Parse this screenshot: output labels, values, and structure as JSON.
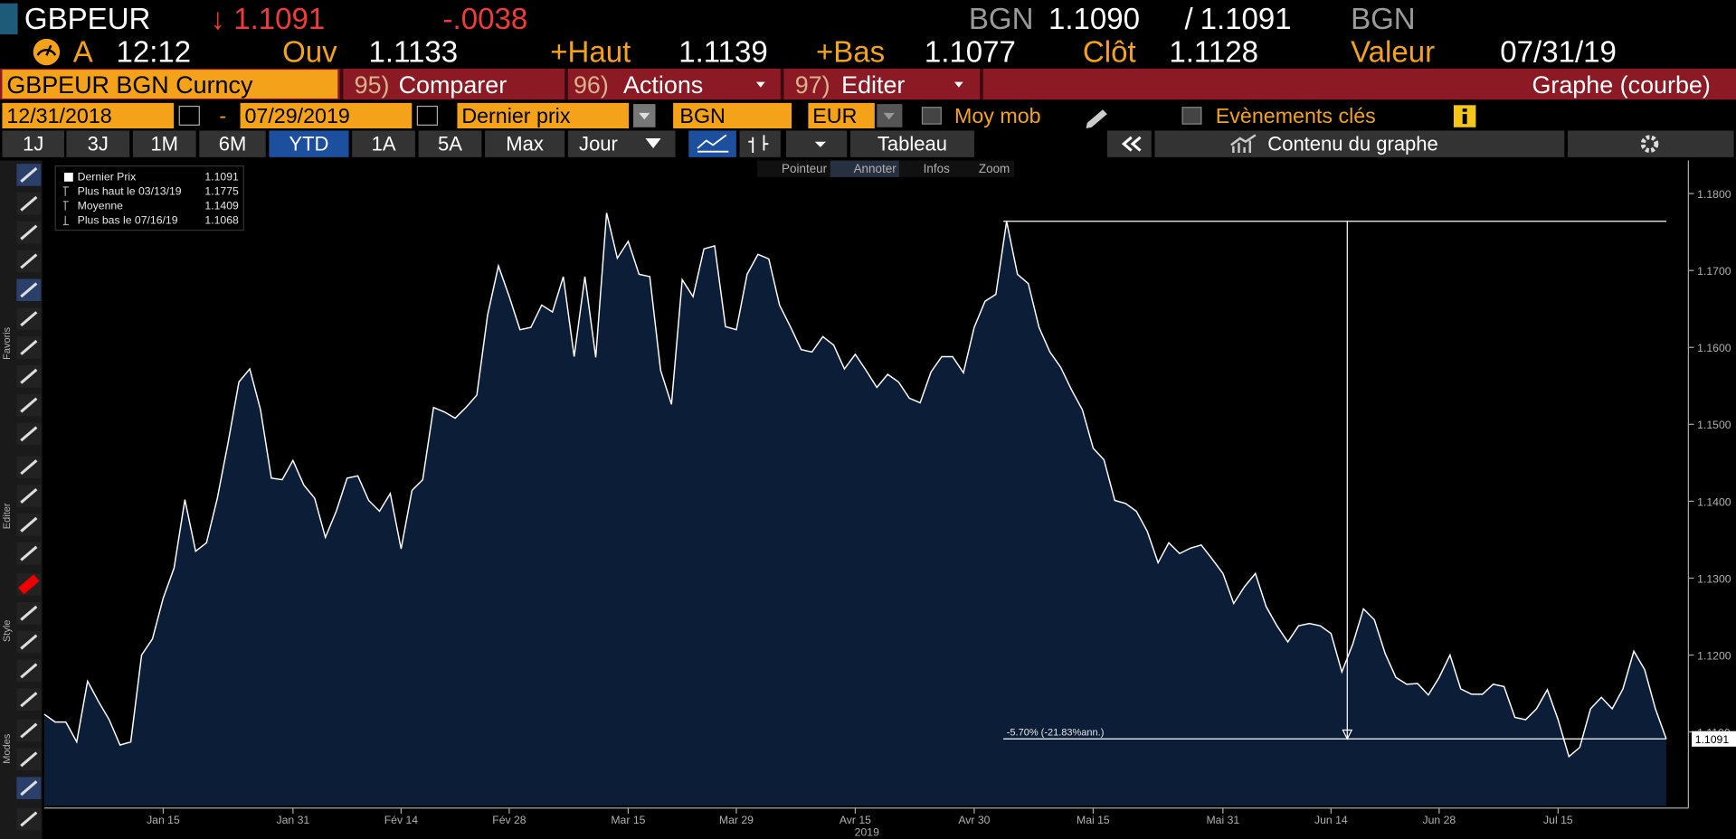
{
  "header": {
    "row1": [
      "GBPEUR",
      "↓ 1.1091",
      "-.0038",
      "BGN",
      "1.1090",
      "/",
      "1.1091",
      "BGN"
    ],
    "row2": [
      "A",
      "12:12",
      "Ouv",
      "1.1133",
      "+Haut",
      "1.1139",
      "+Bas",
      "1.1077",
      "Clôt",
      "1.1128",
      "Valeur",
      "07/31/19"
    ]
  },
  "menu": {
    "security": "GBPEUR BGN Curncy",
    "items": [
      {
        "number": "95)",
        "label": "Comparer"
      },
      {
        "number": "96)",
        "label": "Actions"
      },
      {
        "number": "97)",
        "label": "Editer"
      }
    ],
    "view": "Graphe (courbe)"
  },
  "settings": {
    "start": "12/31/2018",
    "dash": "-",
    "end": "07/29/2019",
    "field": "Dernier prix",
    "source": "BGN",
    "currency": "EUR",
    "moving_average": "Moy mob",
    "key_events": "Evènements clés"
  },
  "toolbar": {
    "periods": [
      "1J",
      "3J",
      "1M",
      "6M",
      "YTD",
      "1A",
      "5A",
      "Max"
    ],
    "frequency": "Jour",
    "table": "Tableau",
    "content": "Contenu du graphe"
  },
  "chart_tools": [
    "Pointeur",
    "Annoter",
    "Infos",
    "Zoom"
  ],
  "sidebar_sections": [
    "Favoris",
    "Editer",
    "Style",
    "Modes"
  ],
  "chart_data": {
    "type": "area",
    "color": "#ffffff",
    "fill": "#0c1d38",
    "values": [
      1.1123,
      1.1113,
      1.1113,
      1.1087,
      1.1166,
      1.114,
      1.1116,
      1.1083,
      1.1087,
      1.12,
      1.1221,
      1.1274,
      1.1313,
      1.1402,
      1.1335,
      1.1346,
      1.1404,
      1.1476,
      1.1555,
      1.1572,
      1.1519,
      1.143,
      1.1428,
      1.1453,
      1.1421,
      1.1404,
      1.1353,
      1.1387,
      1.143,
      1.1433,
      1.1401,
      1.1387,
      1.141,
      1.1338,
      1.1414,
      1.1428,
      1.1522,
      1.1516,
      1.1508,
      1.1522,
      1.1538,
      1.1642,
      1.1706,
      1.1666,
      1.1623,
      1.1626,
      1.1655,
      1.1646,
      1.1692,
      1.1588,
      1.1692,
      1.1587,
      1.1775,
      1.1716,
      1.1738,
      1.1695,
      1.1692,
      1.157,
      1.1526,
      1.1688,
      1.1666,
      1.1728,
      1.1732,
      1.1627,
      1.1623,
      1.1695,
      1.1721,
      1.1715,
      1.1655,
      1.1627,
      1.1597,
      1.1594,
      1.1614,
      1.1603,
      1.1572,
      1.1591,
      1.157,
      1.1548,
      1.1565,
      1.1555,
      1.1534,
      1.1528,
      1.1568,
      1.1588,
      1.1588,
      1.1567,
      1.1626,
      1.166,
      1.1669,
      1.1764,
      1.1695,
      1.1683,
      1.1626,
      1.1594,
      1.1574,
      1.1545,
      1.1519,
      1.1469,
      1.1454,
      1.1401,
      1.1397,
      1.1387,
      1.1361,
      1.132,
      1.1346,
      1.1332,
      1.1339,
      1.1343,
      1.1325,
      1.1306,
      1.1267,
      1.1289,
      1.1306,
      1.1263,
      1.1238,
      1.1217,
      1.1238,
      1.1241,
      1.1238,
      1.1228,
      1.1178,
      1.1214,
      1.126,
      1.1246,
      1.1202,
      1.1171,
      1.1162,
      1.1163,
      1.1148,
      1.1171,
      1.12,
      1.1156,
      1.1149,
      1.1149,
      1.1162,
      1.1159,
      1.1119,
      1.1116,
      1.113,
      1.1155,
      1.1116,
      1.1068,
      1.108,
      1.113,
      1.1145,
      1.113,
      1.1156,
      1.1205,
      1.1181,
      1.113,
      1.1091
    ],
    "xlim": [
      0,
      150
    ],
    "xticks": [
      {
        "value": 11,
        "label": "Jan 15"
      },
      {
        "value": 23,
        "label": "Jan 31"
      },
      {
        "value": 33,
        "label": "Fév 14"
      },
      {
        "value": 43,
        "label": "Fév 28"
      },
      {
        "value": 54,
        "label": "Mar 15"
      },
      {
        "value": 64,
        "label": "Mar 29"
      },
      {
        "value": 75,
        "label": "Avr 15"
      },
      {
        "value": 86,
        "label": "Avr 30"
      },
      {
        "value": 97,
        "label": "Mai 15"
      },
      {
        "value": 109,
        "label": "Mai 31"
      },
      {
        "value": 119,
        "label": "Jun 14"
      },
      {
        "value": 129,
        "label": "Jun 28"
      },
      {
        "value": 140,
        "label": "Jul 15"
      }
    ],
    "x_label": "2019",
    "ylim": [
      1.1004,
      1.1843
    ],
    "yticks": [
      {
        "value": 1.11,
        "label": "1.1100"
      },
      {
        "value": 1.12,
        "label": "1.1200"
      },
      {
        "value": 1.13,
        "label": "1.1300"
      },
      {
        "value": 1.14,
        "label": "1.1400"
      },
      {
        "value": 1.15,
        "label": "1.1500"
      },
      {
        "value": 1.16,
        "label": "1.1600"
      },
      {
        "value": 1.17,
        "label": "1.1700"
      },
      {
        "value": 1.18,
        "label": "1.1800"
      }
    ],
    "legend": [
      {
        "name": "Dernier Prix",
        "value": 1.1091
      },
      {
        "name": "Plus haut le 03/13/19",
        "value": 1.1775
      },
      {
        "name": "Moyenne",
        "value": 1.1409
      },
      {
        "name": "Plus bas le 07/16/19",
        "value": 1.1068
      }
    ],
    "annotation": "-5.70% (-21.83%ann.)"
  }
}
